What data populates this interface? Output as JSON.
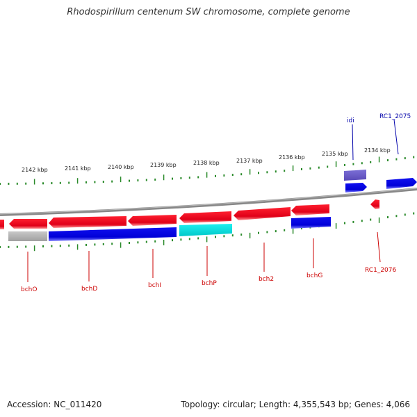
{
  "title": "Rhodospirillum centenum SW chromosome, complete genome",
  "footer": {
    "accession": "Accession: NC_011420",
    "summary": "Topology: circular; Length: 4,355,543 bp; Genes: 4,066"
  },
  "colors": {
    "forward": "#e8001c",
    "reverse": "#0000e0",
    "gray": "#b0b0b0",
    "cyan": "#00e0e0",
    "purple": "#6a5acd",
    "backbone": "#777777",
    "tick": "#2a8a2a",
    "label_red": "#cc0000",
    "label_blue": "#0000aa"
  },
  "scale_labels": [
    "2142 kbp",
    "2141 kbp",
    "2140 kbp",
    "2139 kbp",
    "2138 kbp",
    "2137 kbp",
    "2136 kbp",
    "2135 kbp",
    "2134 kbp"
  ],
  "gene_labels": [
    {
      "text": "bchO",
      "color": "red"
    },
    {
      "text": "bchD",
      "color": "red"
    },
    {
      "text": "bchI",
      "color": "red"
    },
    {
      "text": "bchP",
      "color": "red"
    },
    {
      "text": "bch2",
      "color": "red"
    },
    {
      "text": "bchG",
      "color": "red"
    },
    {
      "text": "RC1_2076",
      "color": "red"
    },
    {
      "text": "idi",
      "color": "blue"
    },
    {
      "text": "RC1_2075",
      "color": "blue"
    }
  ]
}
